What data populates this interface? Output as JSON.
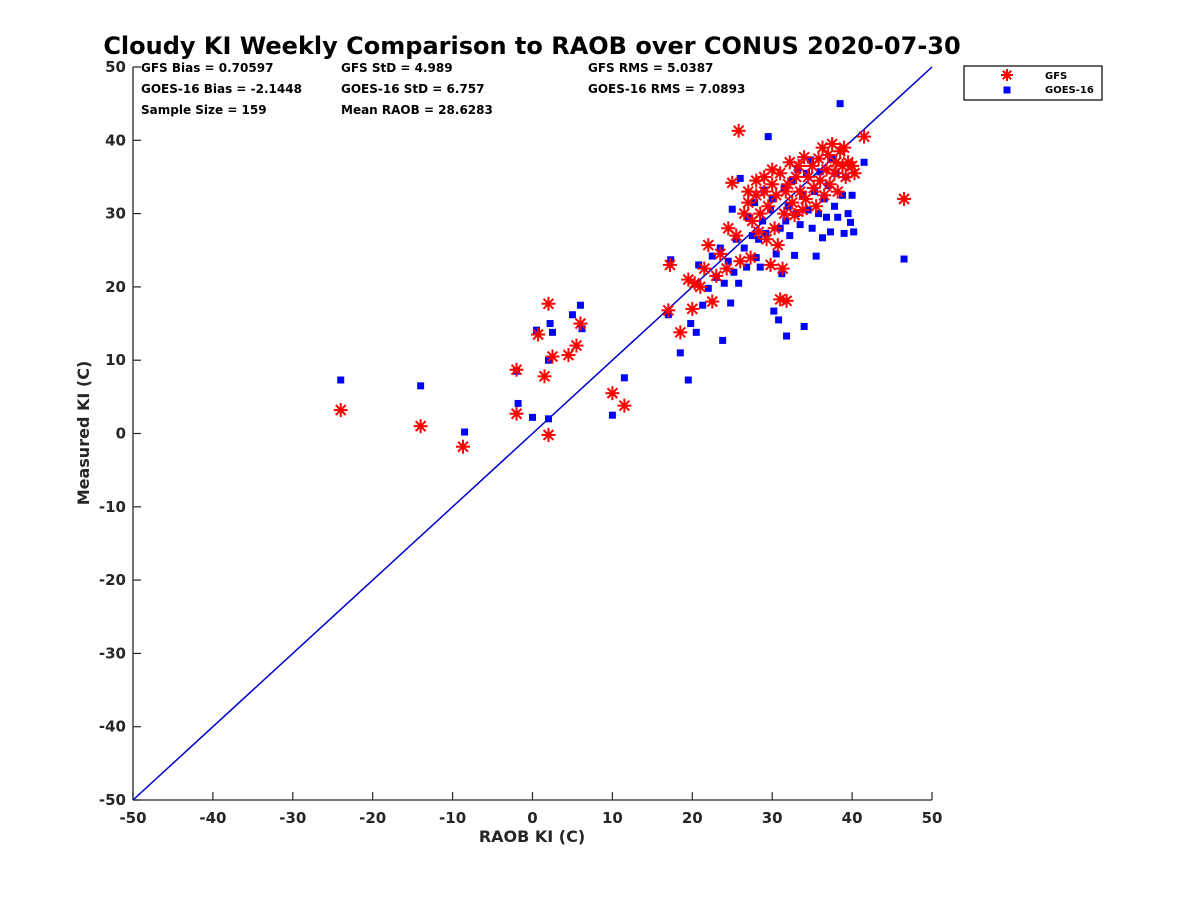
{
  "chart_data": {
    "type": "scatter",
    "title": "Cloudy KI Weekly Comparison to RAOB over CONUS 2020-07-30",
    "xlabel": "RAOB KI (C)",
    "ylabel": "Measured KI (C)",
    "xlim": [
      -50,
      50
    ],
    "ylim": [
      -50,
      50
    ],
    "xticks": [
      "-50",
      "-40",
      "-30",
      "-20",
      "-10",
      "0",
      "10",
      "20",
      "30",
      "40",
      "50"
    ],
    "yticks": [
      "50",
      "40",
      "30",
      "20",
      "10",
      "0",
      "-10",
      "-20",
      "-30",
      "-40",
      "-50"
    ],
    "grid": false,
    "legend_position": "top-right (outside plot)",
    "reference_line": {
      "type": "1:1",
      "from": [
        -50,
        -50
      ],
      "to": [
        50,
        50
      ],
      "color": "#0000cc"
    },
    "series": [
      {
        "name": "GFS",
        "marker": "asterisk",
        "color": "#ff0000",
        "points": [
          [
            -24,
            3.2
          ],
          [
            -14,
            1
          ],
          [
            -8.7,
            -1.8
          ],
          [
            -2,
            8.7
          ],
          [
            -2,
            2.7
          ],
          [
            0.7,
            13.5
          ],
          [
            1.5,
            7.8
          ],
          [
            2,
            17.7
          ],
          [
            2,
            -0.2
          ],
          [
            2.5,
            10.5
          ],
          [
            4.5,
            10.7
          ],
          [
            5.5,
            12
          ],
          [
            6,
            15
          ],
          [
            10,
            5.5
          ],
          [
            11.5,
            3.8
          ],
          [
            17,
            16.8
          ],
          [
            17.2,
            23
          ],
          [
            18.5,
            13.8
          ],
          [
            19.5,
            21
          ],
          [
            20,
            17
          ],
          [
            20.3,
            20.5
          ],
          [
            21,
            20
          ],
          [
            21.5,
            22.5
          ],
          [
            22,
            25.7
          ],
          [
            22.5,
            18
          ],
          [
            23,
            21.5
          ],
          [
            23.5,
            24.5
          ],
          [
            24.3,
            22.5
          ],
          [
            24.5,
            28
          ],
          [
            25,
            34.2
          ],
          [
            25.5,
            27
          ],
          [
            25.8,
            41.3
          ],
          [
            26,
            23.5
          ],
          [
            26.5,
            30
          ],
          [
            27,
            31.5
          ],
          [
            27,
            33
          ],
          [
            27.3,
            24
          ],
          [
            27.5,
            29
          ],
          [
            28,
            32.5
          ],
          [
            28,
            34.5
          ],
          [
            28.3,
            27.5
          ],
          [
            28.5,
            30
          ],
          [
            29,
            33
          ],
          [
            29,
            35
          ],
          [
            29.3,
            26.5
          ],
          [
            29.5,
            31
          ],
          [
            29.8,
            23
          ],
          [
            30,
            34
          ],
          [
            30,
            36
          ],
          [
            30.3,
            28
          ],
          [
            30.5,
            32.5
          ],
          [
            30.7,
            25.7
          ],
          [
            31,
            18.3
          ],
          [
            31,
            35.5
          ],
          [
            31.3,
            22.5
          ],
          [
            31.5,
            30
          ],
          [
            31.7,
            33
          ],
          [
            31.8,
            18.1
          ],
          [
            32,
            34
          ],
          [
            32.2,
            37
          ],
          [
            32.5,
            31.5
          ],
          [
            32.8,
            29.8
          ],
          [
            33,
            35
          ],
          [
            33.3,
            36.5
          ],
          [
            33.5,
            33
          ],
          [
            33.8,
            30.5
          ],
          [
            34,
            37.7
          ],
          [
            34.2,
            32
          ],
          [
            34.5,
            35
          ],
          [
            35,
            36.5
          ],
          [
            35.2,
            33.5
          ],
          [
            35.5,
            31
          ],
          [
            35.8,
            37.5
          ],
          [
            36,
            34.5
          ],
          [
            36.3,
            39
          ],
          [
            36.5,
            32.5
          ],
          [
            36.8,
            36
          ],
          [
            37,
            38
          ],
          [
            37.2,
            34
          ],
          [
            37.5,
            39.5
          ],
          [
            37.8,
            35.5
          ],
          [
            38,
            37
          ],
          [
            38.2,
            33
          ],
          [
            38.5,
            38.5
          ],
          [
            38.8,
            36.5
          ],
          [
            39,
            39
          ],
          [
            39.2,
            35
          ],
          [
            39.5,
            37
          ],
          [
            40,
            36.5
          ],
          [
            40.3,
            35.5
          ],
          [
            41.5,
            40.5
          ],
          [
            46.5,
            32
          ]
        ]
      },
      {
        "name": "GOES-16",
        "marker": "square",
        "color": "#0000ff",
        "points": [
          [
            -24,
            7.3
          ],
          [
            -14,
            6.5
          ],
          [
            -8.5,
            0.2
          ],
          [
            -2,
            8.5
          ],
          [
            -1.8,
            4.1
          ],
          [
            0,
            2.2
          ],
          [
            0.5,
            14.1
          ],
          [
            2,
            2
          ],
          [
            2,
            10
          ],
          [
            2.2,
            15
          ],
          [
            2.5,
            13.8
          ],
          [
            5,
            16.2
          ],
          [
            6,
            17.5
          ],
          [
            6.2,
            14.3
          ],
          [
            10,
            2.5
          ],
          [
            11.5,
            7.6
          ],
          [
            17,
            16.2
          ],
          [
            17.3,
            23.7
          ],
          [
            18.5,
            11
          ],
          [
            19.5,
            7.3
          ],
          [
            19.8,
            15
          ],
          [
            20.5,
            13.8
          ],
          [
            20.8,
            23
          ],
          [
            21.3,
            17.5
          ],
          [
            22,
            19.8
          ],
          [
            22.5,
            24.2
          ],
          [
            23,
            21.3
          ],
          [
            23.5,
            25.3
          ],
          [
            23.8,
            12.7
          ],
          [
            24,
            20.5
          ],
          [
            24.5,
            23.5
          ],
          [
            24.8,
            17.8
          ],
          [
            25,
            30.6
          ],
          [
            25.2,
            22
          ],
          [
            25.5,
            26.5
          ],
          [
            25.8,
            20.5
          ],
          [
            26,
            34.8
          ],
          [
            26.5,
            25.3
          ],
          [
            26.8,
            22.7
          ],
          [
            27,
            29.5
          ],
          [
            27.5,
            27
          ],
          [
            27.8,
            31.5
          ],
          [
            28,
            24
          ],
          [
            28.3,
            26.5
          ],
          [
            28.5,
            22.7
          ],
          [
            28.8,
            29
          ],
          [
            29,
            33.2
          ],
          [
            29.2,
            27.3
          ],
          [
            29.5,
            40.5
          ],
          [
            29.8,
            30.5
          ],
          [
            30,
            32
          ],
          [
            30.2,
            16.7
          ],
          [
            30.5,
            24.5
          ],
          [
            30.8,
            15.5
          ],
          [
            31,
            28
          ],
          [
            31.2,
            21.8
          ],
          [
            31.5,
            33.5
          ],
          [
            31.7,
            29
          ],
          [
            31.8,
            13.3
          ],
          [
            32,
            31
          ],
          [
            32.2,
            27
          ],
          [
            32.5,
            34.5
          ],
          [
            32.8,
            24.3
          ],
          [
            33,
            30
          ],
          [
            33.2,
            36
          ],
          [
            33.5,
            28.5
          ],
          [
            33.8,
            32.5
          ],
          [
            34,
            14.6
          ],
          [
            34.3,
            35.5
          ],
          [
            34.5,
            30.5
          ],
          [
            34.8,
            37.3
          ],
          [
            35,
            28
          ],
          [
            35.3,
            33
          ],
          [
            35.5,
            24.2
          ],
          [
            35.8,
            30
          ],
          [
            36,
            35.7
          ],
          [
            36.3,
            26.7
          ],
          [
            36.5,
            32
          ],
          [
            36.8,
            29.5
          ],
          [
            37,
            33.8
          ],
          [
            37.3,
            27.5
          ],
          [
            37.5,
            37.5
          ],
          [
            37.8,
            31
          ],
          [
            38,
            35.5
          ],
          [
            38.2,
            29.5
          ],
          [
            38.5,
            45
          ],
          [
            38.8,
            32.5
          ],
          [
            39,
            27.3
          ],
          [
            39.2,
            35
          ],
          [
            39.5,
            30
          ],
          [
            39.8,
            28.8
          ],
          [
            40,
            32.5
          ],
          [
            40.2,
            27.5
          ],
          [
            41.5,
            37
          ],
          [
            46.5,
            23.8
          ]
        ]
      }
    ],
    "stats": [
      {
        "text": "GFS Bias = 0.70597"
      },
      {
        "text": "GOES-16 Bias = -2.1448"
      },
      {
        "text": "Sample Size = 159"
      },
      {
        "text": "GFS StD = 4.989"
      },
      {
        "text": "GOES-16 StD = 6.757"
      },
      {
        "text": "Mean RAOB = 28.6283"
      },
      {
        "text": "GFS RMS = 5.0387"
      },
      {
        "text": "GOES-16 RMS = 7.0893"
      }
    ]
  }
}
